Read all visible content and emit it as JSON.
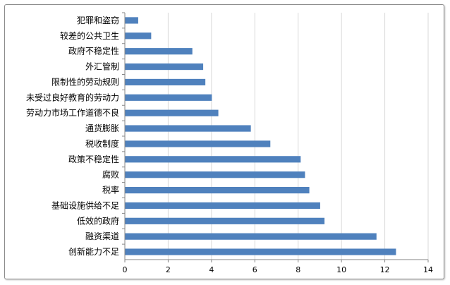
{
  "chart_data": {
    "type": "bar",
    "orientation": "horizontal",
    "categories": [
      "犯罪和盗窃",
      "较差的公共卫生",
      "政府不稳定性",
      "外汇管制",
      "限制性的劳动规则",
      "未受过良好教育的劳动力",
      "劳动力市场工作道德不良",
      "通货膨胀",
      "税收制度",
      "政策不稳定性",
      "腐败",
      "税率",
      "基础设施供给不足",
      "低效的政府",
      "融资渠道",
      "创新能力不足"
    ],
    "values": [
      0.6,
      1.2,
      3.1,
      3.6,
      3.7,
      4.0,
      4.3,
      5.8,
      6.7,
      8.1,
      8.3,
      8.5,
      9.0,
      9.2,
      11.6,
      12.5
    ],
    "xlim": [
      0,
      14
    ],
    "xticks": [
      0,
      2,
      4,
      6,
      8,
      10,
      12,
      14
    ],
    "grid": true,
    "bar_color": "#4f81bd",
    "grid_color": "#d9d9d9",
    "title": "",
    "xlabel": "",
    "ylabel": ""
  }
}
